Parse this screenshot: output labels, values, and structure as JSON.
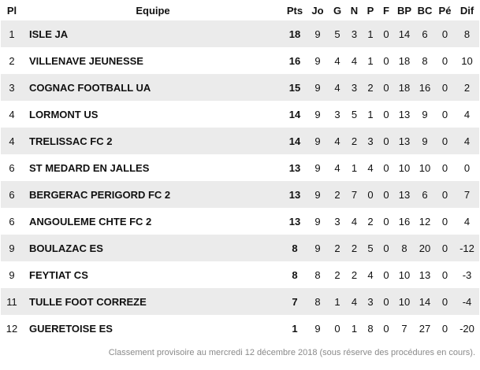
{
  "headers": [
    "Pl",
    "Equipe",
    "Pts",
    "Jo",
    "G",
    "N",
    "P",
    "F",
    "BP",
    "BC",
    "Pé",
    "Dif"
  ],
  "rows": [
    [
      "1",
      "ISLE JA",
      "18",
      "9",
      "5",
      "3",
      "1",
      "0",
      "14",
      "6",
      "0",
      "8"
    ],
    [
      "2",
      "VILLENAVE JEUNESSE",
      "16",
      "9",
      "4",
      "4",
      "1",
      "0",
      "18",
      "8",
      "0",
      "10"
    ],
    [
      "3",
      "COGNAC FOOTBALL UA",
      "15",
      "9",
      "4",
      "3",
      "2",
      "0",
      "18",
      "16",
      "0",
      "2"
    ],
    [
      "4",
      "LORMONT US",
      "14",
      "9",
      "3",
      "5",
      "1",
      "0",
      "13",
      "9",
      "0",
      "4"
    ],
    [
      "4",
      "TRELISSAC FC 2",
      "14",
      "9",
      "4",
      "2",
      "3",
      "0",
      "13",
      "9",
      "0",
      "4"
    ],
    [
      "6",
      "ST MEDARD EN JALLES",
      "13",
      "9",
      "4",
      "1",
      "4",
      "0",
      "10",
      "10",
      "0",
      "0"
    ],
    [
      "6",
      "BERGERAC PERIGORD FC 2",
      "13",
      "9",
      "2",
      "7",
      "0",
      "0",
      "13",
      "6",
      "0",
      "7"
    ],
    [
      "6",
      "ANGOULEME CHTE FC 2",
      "13",
      "9",
      "3",
      "4",
      "2",
      "0",
      "16",
      "12",
      "0",
      "4"
    ],
    [
      "9",
      "BOULAZAC ES",
      "8",
      "9",
      "2",
      "2",
      "5",
      "0",
      "8",
      "20",
      "0",
      "-12"
    ],
    [
      "9",
      "FEYTIAT CS",
      "8",
      "8",
      "2",
      "2",
      "4",
      "0",
      "10",
      "13",
      "0",
      "-3"
    ],
    [
      "11",
      "TULLE FOOT CORREZE",
      "7",
      "8",
      "1",
      "4",
      "3",
      "0",
      "10",
      "14",
      "0",
      "-4"
    ],
    [
      "12",
      "GUERETOISE ES",
      "1",
      "9",
      "0",
      "1",
      "8",
      "0",
      "7",
      "27",
      "0",
      "-20"
    ]
  ],
  "footer": "Classement provisoire au mercredi 12 décembre 2018 (sous réserve des procédures en cours).",
  "colors": {
    "row_stripe": "#ebebeb",
    "footer_text": "#8a8a8a"
  }
}
